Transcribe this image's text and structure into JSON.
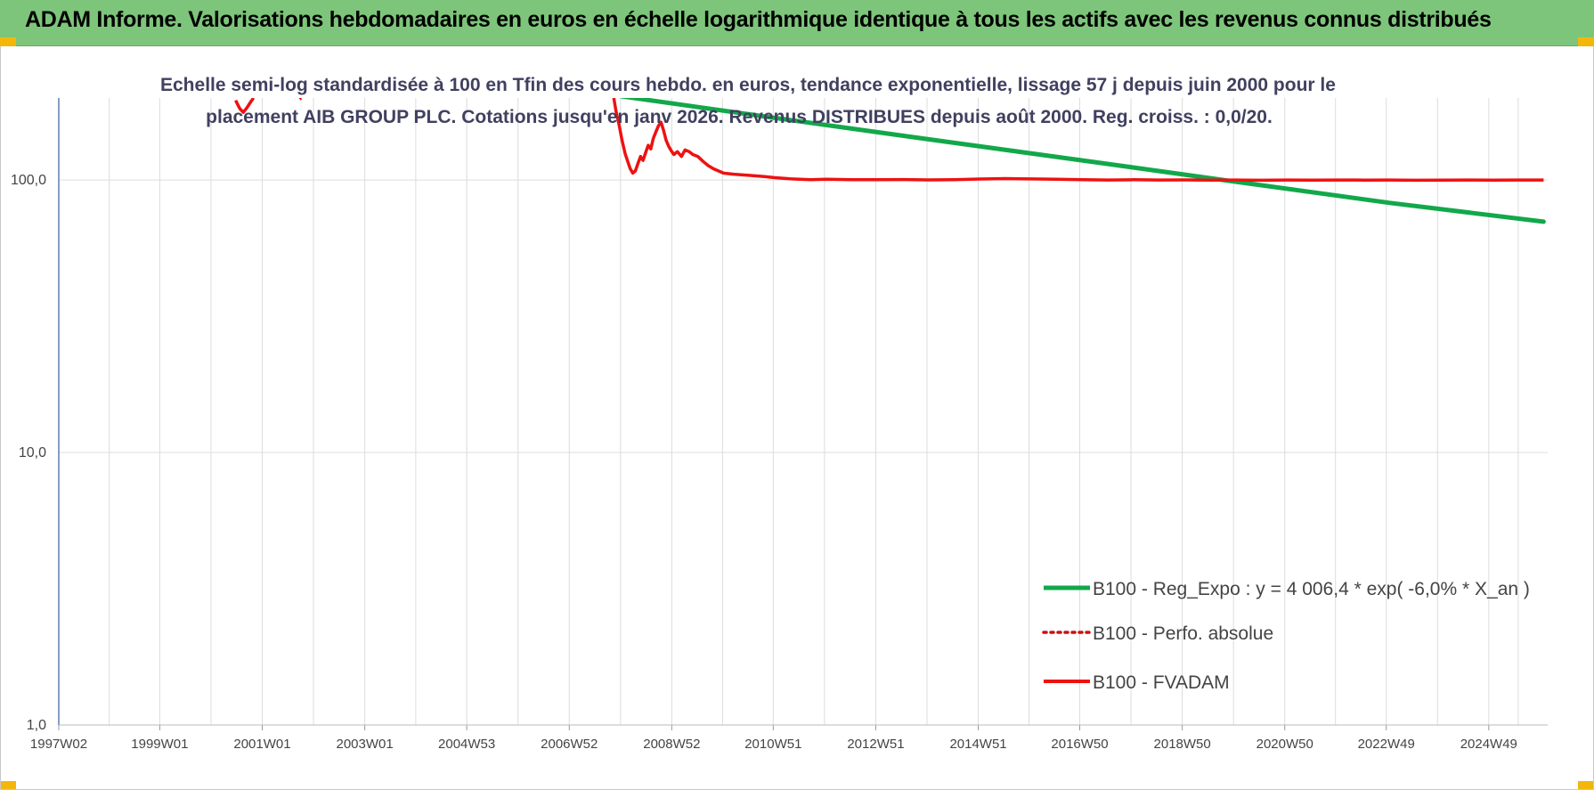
{
  "header": {
    "title": "ADAM Informe. Valorisations hebdomadaires en euros en échelle logarithmique identique à tous les actifs avec les revenus connus distribués"
  },
  "colors": {
    "banner": "#7dc57a",
    "corner": "#f3b70c",
    "trend": "#12a84a",
    "fvadam": "#ee1111",
    "perfo": "#cc1111",
    "grid": "#dcdcdc",
    "axis": "#5b7fb0"
  },
  "chart_data": {
    "type": "line",
    "title": "",
    "subtitle_lines": [
      "Echelle semi-log standardisée à 100 en Tfin des cours hebdo. en euros, tendance exponentielle, lissage 57 j depuis juin 2000 pour le",
      "placement AIB GROUP PLC. Cotations jusqu'en janv 2026. Revenus DISTRIBUES depuis août 2000. Reg. croiss. : 0,0/20."
    ],
    "y_scale": "log",
    "ylim": [
      1,
      200
    ],
    "xlim": [
      1997.03,
      2026.08
    ],
    "y_ticks": [
      {
        "value": 1,
        "label": "1,0"
      },
      {
        "value": 10,
        "label": "10,0"
      },
      {
        "value": 100,
        "label": "100,0"
      }
    ],
    "x_ticks": [
      {
        "value": 1997.03,
        "label": "1997W02"
      },
      {
        "value": 1999.0,
        "label": "1999W01"
      },
      {
        "value": 2001.0,
        "label": "2001W01"
      },
      {
        "value": 2003.0,
        "label": "2003W01"
      },
      {
        "value": 2004.99,
        "label": "2004W53"
      },
      {
        "value": 2006.99,
        "label": "2006W52"
      },
      {
        "value": 2008.99,
        "label": "2008W52"
      },
      {
        "value": 2010.97,
        "label": "2010W51"
      },
      {
        "value": 2012.97,
        "label": "2012W51"
      },
      {
        "value": 2014.97,
        "label": "2014W51"
      },
      {
        "value": 2016.95,
        "label": "2016W50"
      },
      {
        "value": 2018.95,
        "label": "2018W50"
      },
      {
        "value": 2020.95,
        "label": "2020W50"
      },
      {
        "value": 2022.93,
        "label": "2022W49"
      },
      {
        "value": 2024.93,
        "label": "2024W49"
      }
    ],
    "legend_position": "bottom-right",
    "series": [
      {
        "name": "B100 - Reg_Expo : y = 4 006,4 * exp( -6,0% *  X_an )",
        "style": "solid-thick",
        "points": [
          [
            2008.0,
            203
          ],
          [
            2011.0,
            169
          ],
          [
            2014.0,
            141
          ],
          [
            2017.0,
            118
          ],
          [
            2020.0,
            98.5
          ],
          [
            2023.0,
            82.4
          ],
          [
            2026.0,
            70.3
          ]
        ]
      },
      {
        "name": "B100 - Perfo. absolue",
        "style": "dotted",
        "points": []
      },
      {
        "name": "B100 - FVADAM",
        "style": "solid",
        "segments": [
          [
            [
              2000.48,
              196
            ],
            [
              2000.56,
              183
            ],
            [
              2000.63,
              177
            ],
            [
              2000.7,
              184
            ],
            [
              2000.78,
              194
            ],
            [
              2000.83,
              200
            ]
          ],
          [
            [
              2001.73,
              198
            ],
            [
              2001.76,
              200
            ]
          ],
          [
            [
              2007.86,
              200
            ],
            [
              2007.9,
              180
            ],
            [
              2007.96,
              160
            ],
            [
              2008.02,
              140
            ],
            [
              2008.08,
              125
            ],
            [
              2008.13,
              117
            ],
            [
              2008.18,
              110
            ],
            [
              2008.23,
              106
            ],
            [
              2008.28,
              108
            ],
            [
              2008.33,
              115
            ],
            [
              2008.38,
              122
            ],
            [
              2008.43,
              118
            ],
            [
              2008.48,
              126
            ],
            [
              2008.53,
              134
            ],
            [
              2008.58,
              130
            ],
            [
              2008.63,
              142
            ],
            [
              2008.68,
              150
            ],
            [
              2008.73,
              158
            ],
            [
              2008.78,
              163
            ],
            [
              2008.83,
              152
            ],
            [
              2008.88,
              140
            ],
            [
              2008.93,
              133
            ],
            [
              2008.98,
              128
            ],
            [
              2009.03,
              124
            ],
            [
              2009.1,
              127
            ],
            [
              2009.18,
              122
            ],
            [
              2009.25,
              129
            ],
            [
              2009.33,
              127
            ],
            [
              2009.4,
              124
            ],
            [
              2009.5,
              122
            ],
            [
              2009.6,
              117
            ],
            [
              2009.7,
              113
            ],
            [
              2009.8,
              110
            ],
            [
              2009.9,
              108
            ],
            [
              2010.0,
              106
            ],
            [
              2010.2,
              105
            ],
            [
              2010.5,
              104
            ],
            [
              2010.8,
              103
            ],
            [
              2011.0,
              102
            ],
            [
              2011.3,
              101
            ],
            [
              2011.7,
              100.3
            ],
            [
              2012.0,
              100.6
            ],
            [
              2012.5,
              100.2
            ],
            [
              2013.0,
              100.3
            ],
            [
              2013.5,
              100.4
            ],
            [
              2014.0,
              100.1
            ],
            [
              2014.5,
              100.3
            ],
            [
              2015.0,
              100.8
            ],
            [
              2015.5,
              101.2
            ],
            [
              2016.0,
              100.9
            ],
            [
              2016.5,
              100.6
            ],
            [
              2017.0,
              100.3
            ],
            [
              2017.5,
              100.0
            ],
            [
              2018.0,
              100.2
            ],
            [
              2018.5,
              100.0
            ],
            [
              2019.0,
              100.1
            ],
            [
              2019.5,
              99.9
            ],
            [
              2020.0,
              100.0
            ],
            [
              2020.5,
              99.8
            ],
            [
              2021.0,
              100.0
            ],
            [
              2021.5,
              99.9
            ],
            [
              2022.0,
              100.0
            ],
            [
              2022.5,
              99.9
            ],
            [
              2023.0,
              100.0
            ],
            [
              2023.5,
              99.8
            ],
            [
              2024.0,
              99.9
            ],
            [
              2024.5,
              100.0
            ],
            [
              2025.0,
              99.9
            ],
            [
              2025.5,
              100.0
            ],
            [
              2026.0,
              100.0
            ]
          ]
        ]
      }
    ]
  }
}
